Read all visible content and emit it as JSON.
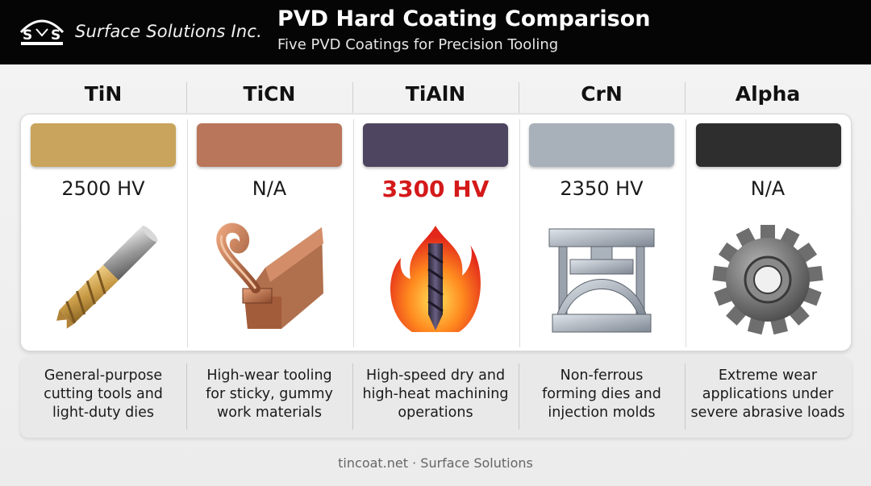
{
  "header": {
    "company": "Surface Solutions Inc.",
    "title": "PVD Hard Coating Comparison",
    "subtitle": "Five PVD Coatings for Precision Tooling",
    "logo_letters": "S S"
  },
  "coatings": [
    {
      "name": "TiN",
      "hardness": "2500 HV",
      "color": "#c9a45c",
      "highlight": false,
      "icon": "end-mill-icon",
      "description": "General-purpose\ncutting tools and\nlight-duty dies"
    },
    {
      "name": "TiCN",
      "hardness": "N/A",
      "color": "#b9765a",
      "highlight": false,
      "icon": "cutting-tool-chip-icon",
      "description": "High-wear tooling\nfor sticky, gummy\nwork materials"
    },
    {
      "name": "TiAlN",
      "hardness": "3300 HV",
      "color": "#4e4560",
      "highlight": true,
      "icon": "drill-flame-icon",
      "description": "High-speed dry and\nhigh-heat machining\noperations"
    },
    {
      "name": "CrN",
      "hardness": "2350 HV",
      "color": "#a8b0ba",
      "highlight": false,
      "icon": "forming-press-icon",
      "description": "Non-ferrous\nforming dies and\ninjection molds"
    },
    {
      "name": "Alpha",
      "hardness": "N/A",
      "color": "#2e2e2e",
      "highlight": false,
      "icon": "gear-icon",
      "description": "Extreme wear\napplications under\nsevere abrasive loads"
    }
  ],
  "colors": {
    "highlight": "#d4191a",
    "header_bg": "#050505"
  },
  "footer": "tincoat.net · Surface Solutions"
}
